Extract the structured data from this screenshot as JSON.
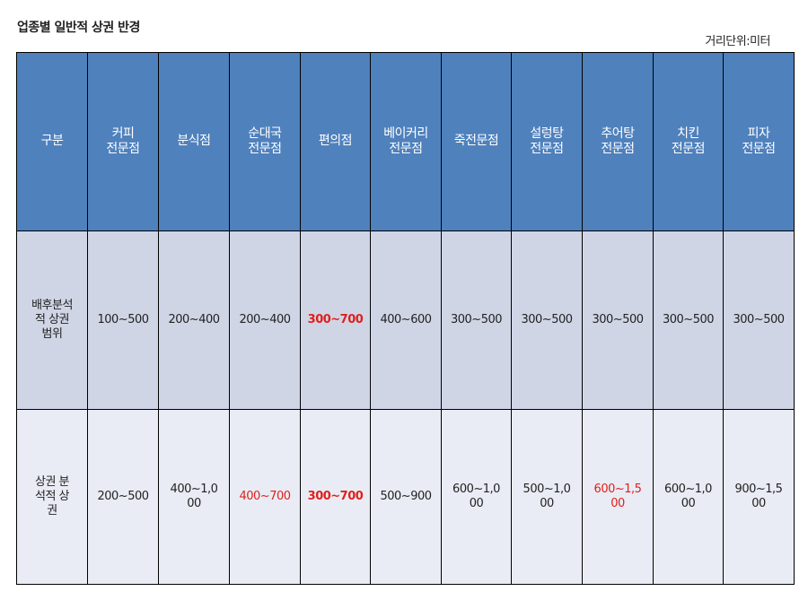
{
  "title": "업종별 일반적 상권 반경",
  "unit_note": "거리단위:미터",
  "header": [
    "구분",
    "커피\n전문점",
    "분식점",
    "순대국\n전문점",
    "편의점",
    "베이커리\n전문점",
    "죽전문점",
    "설렁탕\n전문점",
    "추어탕\n전문점",
    "치킨\n전문점",
    "피자\n전문점"
  ],
  "rows": [
    {
      "label": "배후분석\n적 상권\n범위",
      "cells": [
        "100~500",
        "200~400",
        "200~400",
        "300~700",
        "400~600",
        "300~500",
        "300~500",
        "300~500",
        "300~500",
        "300~500"
      ]
    },
    {
      "label": "상권 분\n석적 상\n권",
      "cells": [
        "200~500",
        "400~1,0\n00",
        "400~700",
        "300~700",
        "500~900",
        "600~1,0\n00",
        "500~1,0\n00",
        "600~1,5\n00",
        "600~1,0\n00",
        "900~1,5\n00"
      ]
    }
  ],
  "colors": {
    "header_bg": "#4f81bd",
    "row1_bg": "#d0d5e6",
    "row2_bg": "#e9ecf4",
    "highlight": "#e0201c"
  }
}
